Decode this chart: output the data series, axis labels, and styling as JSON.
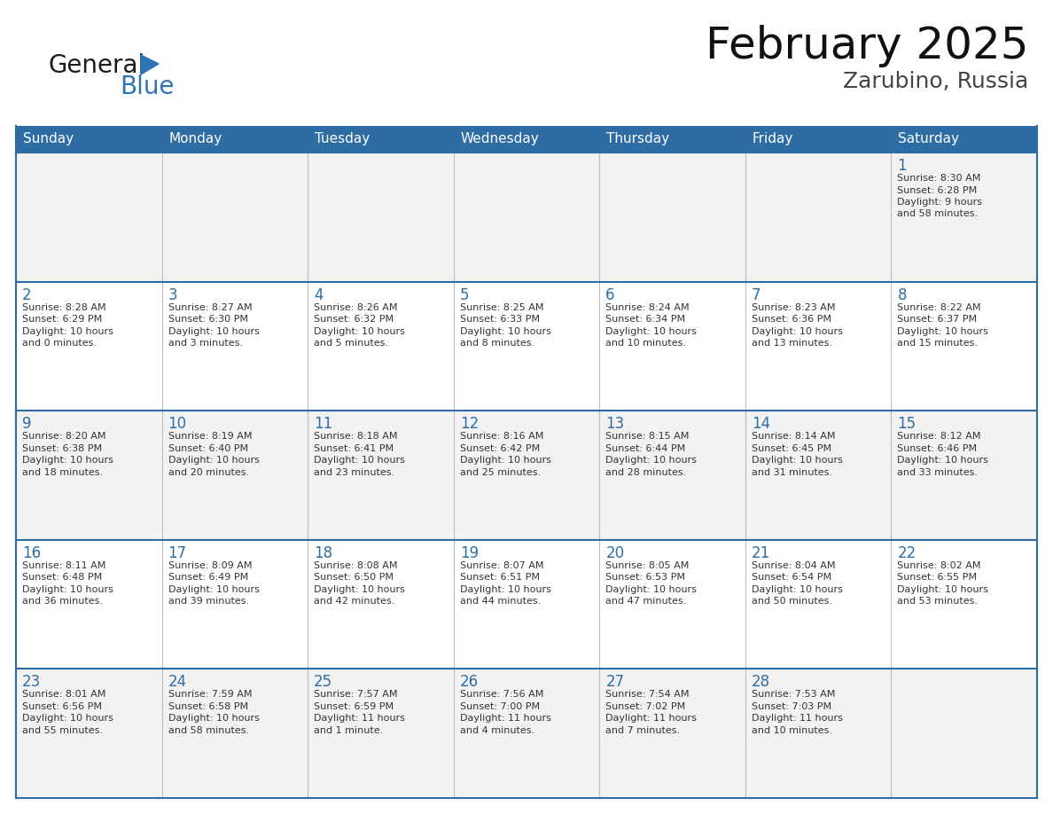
{
  "title": "February 2025",
  "subtitle": "Zarubino, Russia",
  "header_bg": "#2E6DA4",
  "header_text_color": "#FFFFFF",
  "row_bg_even": "#F2F2F2",
  "row_bg_odd": "#FFFFFF",
  "border_color": "#2E6DA4",
  "col_sep_color": "#BBBBBB",
  "days_of_week": [
    "Sunday",
    "Monday",
    "Tuesday",
    "Wednesday",
    "Thursday",
    "Friday",
    "Saturday"
  ],
  "title_color": "#111111",
  "subtitle_color": "#444444",
  "day_num_color": "#2E6DA4",
  "cell_text_color": "#333333",
  "calendar": [
    [
      null,
      null,
      null,
      null,
      null,
      null,
      {
        "day": "1",
        "sunrise": "8:30 AM",
        "sunset": "6:28 PM",
        "daylight_line1": "Daylight: 9 hours",
        "daylight_line2": "and 58 minutes."
      }
    ],
    [
      {
        "day": "2",
        "sunrise": "8:28 AM",
        "sunset": "6:29 PM",
        "daylight_line1": "Daylight: 10 hours",
        "daylight_line2": "and 0 minutes."
      },
      {
        "day": "3",
        "sunrise": "8:27 AM",
        "sunset": "6:30 PM",
        "daylight_line1": "Daylight: 10 hours",
        "daylight_line2": "and 3 minutes."
      },
      {
        "day": "4",
        "sunrise": "8:26 AM",
        "sunset": "6:32 PM",
        "daylight_line1": "Daylight: 10 hours",
        "daylight_line2": "and 5 minutes."
      },
      {
        "day": "5",
        "sunrise": "8:25 AM",
        "sunset": "6:33 PM",
        "daylight_line1": "Daylight: 10 hours",
        "daylight_line2": "and 8 minutes."
      },
      {
        "day": "6",
        "sunrise": "8:24 AM",
        "sunset": "6:34 PM",
        "daylight_line1": "Daylight: 10 hours",
        "daylight_line2": "and 10 minutes."
      },
      {
        "day": "7",
        "sunrise": "8:23 AM",
        "sunset": "6:36 PM",
        "daylight_line1": "Daylight: 10 hours",
        "daylight_line2": "and 13 minutes."
      },
      {
        "day": "8",
        "sunrise": "8:22 AM",
        "sunset": "6:37 PM",
        "daylight_line1": "Daylight: 10 hours",
        "daylight_line2": "and 15 minutes."
      }
    ],
    [
      {
        "day": "9",
        "sunrise": "8:20 AM",
        "sunset": "6:38 PM",
        "daylight_line1": "Daylight: 10 hours",
        "daylight_line2": "and 18 minutes."
      },
      {
        "day": "10",
        "sunrise": "8:19 AM",
        "sunset": "6:40 PM",
        "daylight_line1": "Daylight: 10 hours",
        "daylight_line2": "and 20 minutes."
      },
      {
        "day": "11",
        "sunrise": "8:18 AM",
        "sunset": "6:41 PM",
        "daylight_line1": "Daylight: 10 hours",
        "daylight_line2": "and 23 minutes."
      },
      {
        "day": "12",
        "sunrise": "8:16 AM",
        "sunset": "6:42 PM",
        "daylight_line1": "Daylight: 10 hours",
        "daylight_line2": "and 25 minutes."
      },
      {
        "day": "13",
        "sunrise": "8:15 AM",
        "sunset": "6:44 PM",
        "daylight_line1": "Daylight: 10 hours",
        "daylight_line2": "and 28 minutes."
      },
      {
        "day": "14",
        "sunrise": "8:14 AM",
        "sunset": "6:45 PM",
        "daylight_line1": "Daylight: 10 hours",
        "daylight_line2": "and 31 minutes."
      },
      {
        "day": "15",
        "sunrise": "8:12 AM",
        "sunset": "6:46 PM",
        "daylight_line1": "Daylight: 10 hours",
        "daylight_line2": "and 33 minutes."
      }
    ],
    [
      {
        "day": "16",
        "sunrise": "8:11 AM",
        "sunset": "6:48 PM",
        "daylight_line1": "Daylight: 10 hours",
        "daylight_line2": "and 36 minutes."
      },
      {
        "day": "17",
        "sunrise": "8:09 AM",
        "sunset": "6:49 PM",
        "daylight_line1": "Daylight: 10 hours",
        "daylight_line2": "and 39 minutes."
      },
      {
        "day": "18",
        "sunrise": "8:08 AM",
        "sunset": "6:50 PM",
        "daylight_line1": "Daylight: 10 hours",
        "daylight_line2": "and 42 minutes."
      },
      {
        "day": "19",
        "sunrise": "8:07 AM",
        "sunset": "6:51 PM",
        "daylight_line1": "Daylight: 10 hours",
        "daylight_line2": "and 44 minutes."
      },
      {
        "day": "20",
        "sunrise": "8:05 AM",
        "sunset": "6:53 PM",
        "daylight_line1": "Daylight: 10 hours",
        "daylight_line2": "and 47 minutes."
      },
      {
        "day": "21",
        "sunrise": "8:04 AM",
        "sunset": "6:54 PM",
        "daylight_line1": "Daylight: 10 hours",
        "daylight_line2": "and 50 minutes."
      },
      {
        "day": "22",
        "sunrise": "8:02 AM",
        "sunset": "6:55 PM",
        "daylight_line1": "Daylight: 10 hours",
        "daylight_line2": "and 53 minutes."
      }
    ],
    [
      {
        "day": "23",
        "sunrise": "8:01 AM",
        "sunset": "6:56 PM",
        "daylight_line1": "Daylight: 10 hours",
        "daylight_line2": "and 55 minutes."
      },
      {
        "day": "24",
        "sunrise": "7:59 AM",
        "sunset": "6:58 PM",
        "daylight_line1": "Daylight: 10 hours",
        "daylight_line2": "and 58 minutes."
      },
      {
        "day": "25",
        "sunrise": "7:57 AM",
        "sunset": "6:59 PM",
        "daylight_line1": "Daylight: 11 hours",
        "daylight_line2": "and 1 minute."
      },
      {
        "day": "26",
        "sunrise": "7:56 AM",
        "sunset": "7:00 PM",
        "daylight_line1": "Daylight: 11 hours",
        "daylight_line2": "and 4 minutes."
      },
      {
        "day": "27",
        "sunrise": "7:54 AM",
        "sunset": "7:02 PM",
        "daylight_line1": "Daylight: 11 hours",
        "daylight_line2": "and 7 minutes."
      },
      {
        "day": "28",
        "sunrise": "7:53 AM",
        "sunset": "7:03 PM",
        "daylight_line1": "Daylight: 11 hours",
        "daylight_line2": "and 10 minutes."
      },
      null
    ]
  ],
  "logo_text1": "General",
  "logo_text2": "Blue",
  "logo_color1": "#1a1a1a",
  "logo_color2": "#2E75B6",
  "fig_width": 11.88,
  "fig_height": 9.18,
  "dpi": 100
}
